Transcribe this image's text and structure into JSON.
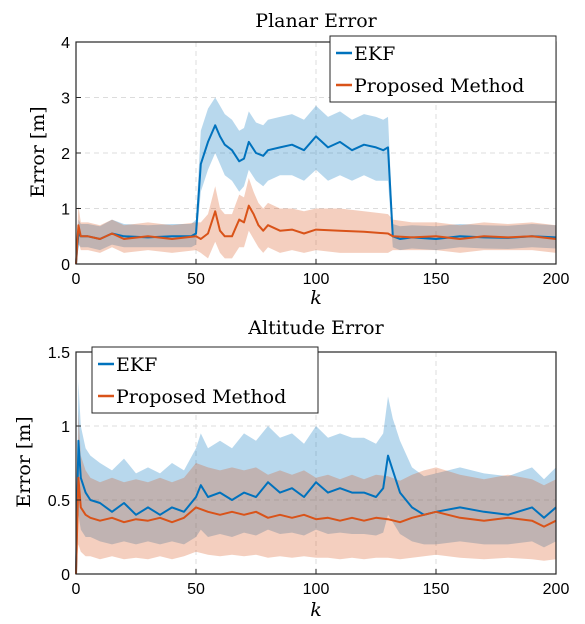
{
  "chart_data": [
    {
      "type": "line",
      "title": "Planar Error",
      "xlabel": "k",
      "ylabel": "Error [m]",
      "xlim": [
        0,
        200
      ],
      "ylim": [
        0,
        4
      ],
      "xticks": [
        0,
        50,
        100,
        150,
        200
      ],
      "yticks": [
        0,
        1,
        2,
        3,
        4
      ],
      "grid": true,
      "legend": "top-right",
      "band": "shaded uncertainty band around each series",
      "series": [
        {
          "name": "EKF",
          "color": "#0072BD",
          "x": [
            0,
            1,
            2,
            5,
            10,
            15,
            20,
            30,
            40,
            48,
            50,
            52,
            55,
            58,
            60,
            62,
            65,
            68,
            70,
            72,
            75,
            78,
            80,
            85,
            90,
            95,
            100,
            105,
            110,
            115,
            120,
            125,
            128,
            130,
            132,
            135,
            140,
            150,
            160,
            170,
            180,
            190,
            200
          ],
          "values": [
            0.0,
            0.55,
            0.5,
            0.5,
            0.45,
            0.55,
            0.5,
            0.48,
            0.5,
            0.5,
            0.55,
            1.8,
            2.2,
            2.5,
            2.3,
            2.15,
            2.05,
            1.85,
            1.9,
            2.2,
            2.0,
            1.95,
            2.05,
            2.1,
            2.15,
            2.05,
            2.3,
            2.1,
            2.2,
            2.05,
            2.15,
            2.1,
            2.05,
            2.1,
            0.5,
            0.45,
            0.48,
            0.45,
            0.5,
            0.48,
            0.47,
            0.5,
            0.48
          ],
          "lower": [
            0.0,
            0.35,
            0.3,
            0.3,
            0.25,
            0.35,
            0.3,
            0.3,
            0.3,
            0.3,
            0.35,
            1.3,
            1.7,
            2.0,
            1.8,
            1.6,
            1.5,
            1.3,
            1.4,
            1.7,
            1.5,
            1.4,
            1.5,
            1.6,
            1.6,
            1.5,
            1.7,
            1.5,
            1.6,
            1.5,
            1.6,
            1.5,
            1.5,
            1.5,
            0.3,
            0.25,
            0.28,
            0.25,
            0.3,
            0.28,
            0.27,
            0.3,
            0.28
          ],
          "upper": [
            0.0,
            0.8,
            0.72,
            0.72,
            0.68,
            0.8,
            0.72,
            0.7,
            0.72,
            0.72,
            0.8,
            2.4,
            2.8,
            3.0,
            2.85,
            2.7,
            2.6,
            2.4,
            2.45,
            2.75,
            2.55,
            2.5,
            2.6,
            2.65,
            2.7,
            2.6,
            2.85,
            2.65,
            2.75,
            2.6,
            2.7,
            2.65,
            2.6,
            2.65,
            0.72,
            0.68,
            0.7,
            0.68,
            0.72,
            0.7,
            0.69,
            0.72,
            0.7
          ]
        },
        {
          "name": "Proposed Method",
          "color": "#D95319",
          "x": [
            0,
            1,
            2,
            5,
            10,
            15,
            20,
            30,
            40,
            50,
            52,
            55,
            58,
            60,
            62,
            65,
            68,
            70,
            72,
            74,
            76,
            78,
            80,
            85,
            90,
            95,
            100,
            110,
            120,
            130,
            132,
            140,
            150,
            160,
            170,
            180,
            190,
            200
          ],
          "values": [
            0.0,
            0.7,
            0.5,
            0.5,
            0.45,
            0.55,
            0.45,
            0.5,
            0.45,
            0.5,
            0.45,
            0.55,
            0.95,
            0.6,
            0.5,
            0.5,
            0.8,
            0.75,
            1.05,
            0.9,
            0.7,
            0.6,
            0.7,
            0.6,
            0.62,
            0.55,
            0.62,
            0.6,
            0.58,
            0.55,
            0.5,
            0.48,
            0.5,
            0.45,
            0.5,
            0.48,
            0.5,
            0.45
          ],
          "lower": [
            0.0,
            0.4,
            0.25,
            0.25,
            0.2,
            0.3,
            0.2,
            0.25,
            0.2,
            0.25,
            0.2,
            0.1,
            0.4,
            0.2,
            0.1,
            0.1,
            0.3,
            0.3,
            0.6,
            0.45,
            0.3,
            0.2,
            0.3,
            0.2,
            0.25,
            0.2,
            0.25,
            0.2,
            0.2,
            0.2,
            0.25,
            0.25,
            0.25,
            0.2,
            0.25,
            0.25,
            0.25,
            0.2
          ],
          "upper": [
            0.0,
            1.05,
            0.75,
            0.75,
            0.7,
            0.8,
            0.7,
            0.75,
            0.7,
            0.75,
            0.75,
            0.9,
            1.4,
            1.0,
            0.9,
            0.9,
            1.25,
            1.2,
            1.55,
            1.3,
            1.1,
            1.0,
            1.1,
            1.0,
            1.0,
            0.95,
            1.0,
            1.0,
            0.95,
            0.9,
            0.8,
            0.75,
            0.75,
            0.7,
            0.75,
            0.72,
            0.75,
            0.7
          ]
        }
      ]
    },
    {
      "type": "line",
      "title": "Altitude Error",
      "xlabel": "k",
      "ylabel": "Error [m]",
      "xlim": [
        0,
        200
      ],
      "ylim": [
        0,
        1.5
      ],
      "xticks": [
        0,
        50,
        100,
        150,
        200
      ],
      "yticks": [
        0,
        0.5,
        1,
        1.5
      ],
      "grid": true,
      "legend": "top-left",
      "band": "shaded uncertainty band around each series",
      "series": [
        {
          "name": "EKF",
          "color": "#0072BD",
          "x": [
            0,
            1,
            2,
            4,
            6,
            10,
            15,
            20,
            25,
            30,
            35,
            40,
            45,
            50,
            52,
            55,
            60,
            65,
            70,
            75,
            80,
            85,
            90,
            95,
            100,
            105,
            110,
            115,
            120,
            125,
            128,
            130,
            132,
            135,
            140,
            145,
            150,
            160,
            170,
            180,
            190,
            195,
            200
          ],
          "values": [
            0.0,
            0.9,
            0.65,
            0.55,
            0.5,
            0.48,
            0.42,
            0.48,
            0.4,
            0.45,
            0.4,
            0.45,
            0.42,
            0.52,
            0.6,
            0.52,
            0.55,
            0.5,
            0.55,
            0.52,
            0.62,
            0.55,
            0.58,
            0.52,
            0.62,
            0.55,
            0.58,
            0.55,
            0.55,
            0.52,
            0.58,
            0.8,
            0.7,
            0.55,
            0.45,
            0.4,
            0.42,
            0.45,
            0.42,
            0.4,
            0.45,
            0.38,
            0.45
          ],
          "lower": [
            0.0,
            0.4,
            0.3,
            0.25,
            0.25,
            0.22,
            0.2,
            0.22,
            0.2,
            0.22,
            0.2,
            0.22,
            0.2,
            0.25,
            0.3,
            0.25,
            0.27,
            0.25,
            0.28,
            0.26,
            0.3,
            0.27,
            0.28,
            0.26,
            0.3,
            0.27,
            0.28,
            0.27,
            0.27,
            0.26,
            0.28,
            0.4,
            0.35,
            0.27,
            0.22,
            0.2,
            0.2,
            0.22,
            0.2,
            0.2,
            0.22,
            0.18,
            0.22
          ],
          "upper": [
            0.0,
            1.3,
            1.0,
            0.85,
            0.8,
            0.75,
            0.7,
            0.78,
            0.68,
            0.72,
            0.68,
            0.75,
            0.7,
            0.85,
            0.95,
            0.85,
            0.9,
            0.85,
            0.95,
            0.9,
            1.0,
            0.92,
            0.95,
            0.88,
            1.0,
            0.92,
            0.95,
            0.92,
            0.92,
            0.88,
            0.95,
            1.2,
            1.05,
            0.9,
            0.72,
            0.66,
            0.68,
            0.72,
            0.68,
            0.66,
            0.72,
            0.64,
            0.72
          ]
        },
        {
          "name": "Proposed Method",
          "color": "#D95319",
          "x": [
            0,
            1,
            2,
            4,
            6,
            10,
            15,
            20,
            25,
            30,
            35,
            40,
            45,
            50,
            55,
            60,
            65,
            70,
            75,
            80,
            85,
            90,
            95,
            100,
            105,
            110,
            115,
            120,
            125,
            130,
            135,
            140,
            145,
            150,
            160,
            170,
            180,
            190,
            195,
            200
          ],
          "values": [
            0.0,
            0.65,
            0.45,
            0.4,
            0.38,
            0.36,
            0.38,
            0.35,
            0.37,
            0.36,
            0.38,
            0.35,
            0.38,
            0.45,
            0.42,
            0.4,
            0.42,
            0.4,
            0.42,
            0.38,
            0.4,
            0.38,
            0.4,
            0.37,
            0.38,
            0.36,
            0.38,
            0.36,
            0.38,
            0.37,
            0.35,
            0.38,
            0.4,
            0.42,
            0.38,
            0.36,
            0.38,
            0.36,
            0.32,
            0.36
          ],
          "lower": [
            0.0,
            0.2,
            0.15,
            0.12,
            0.12,
            0.1,
            0.12,
            0.1,
            0.11,
            0.1,
            0.12,
            0.1,
            0.12,
            0.15,
            0.13,
            0.12,
            0.13,
            0.12,
            0.13,
            0.11,
            0.12,
            0.11,
            0.12,
            0.11,
            0.11,
            0.1,
            0.11,
            0.1,
            0.11,
            0.11,
            0.1,
            0.11,
            0.12,
            0.13,
            0.11,
            0.1,
            0.11,
            0.1,
            0.09,
            0.1
          ],
          "upper": [
            0.0,
            1.1,
            0.8,
            0.7,
            0.65,
            0.62,
            0.65,
            0.62,
            0.64,
            0.62,
            0.65,
            0.62,
            0.65,
            0.75,
            0.72,
            0.7,
            0.72,
            0.7,
            0.72,
            0.67,
            0.7,
            0.67,
            0.7,
            0.65,
            0.67,
            0.64,
            0.67,
            0.64,
            0.67,
            0.66,
            0.63,
            0.67,
            0.7,
            0.72,
            0.67,
            0.64,
            0.67,
            0.64,
            0.6,
            0.64
          ]
        }
      ]
    }
  ]
}
